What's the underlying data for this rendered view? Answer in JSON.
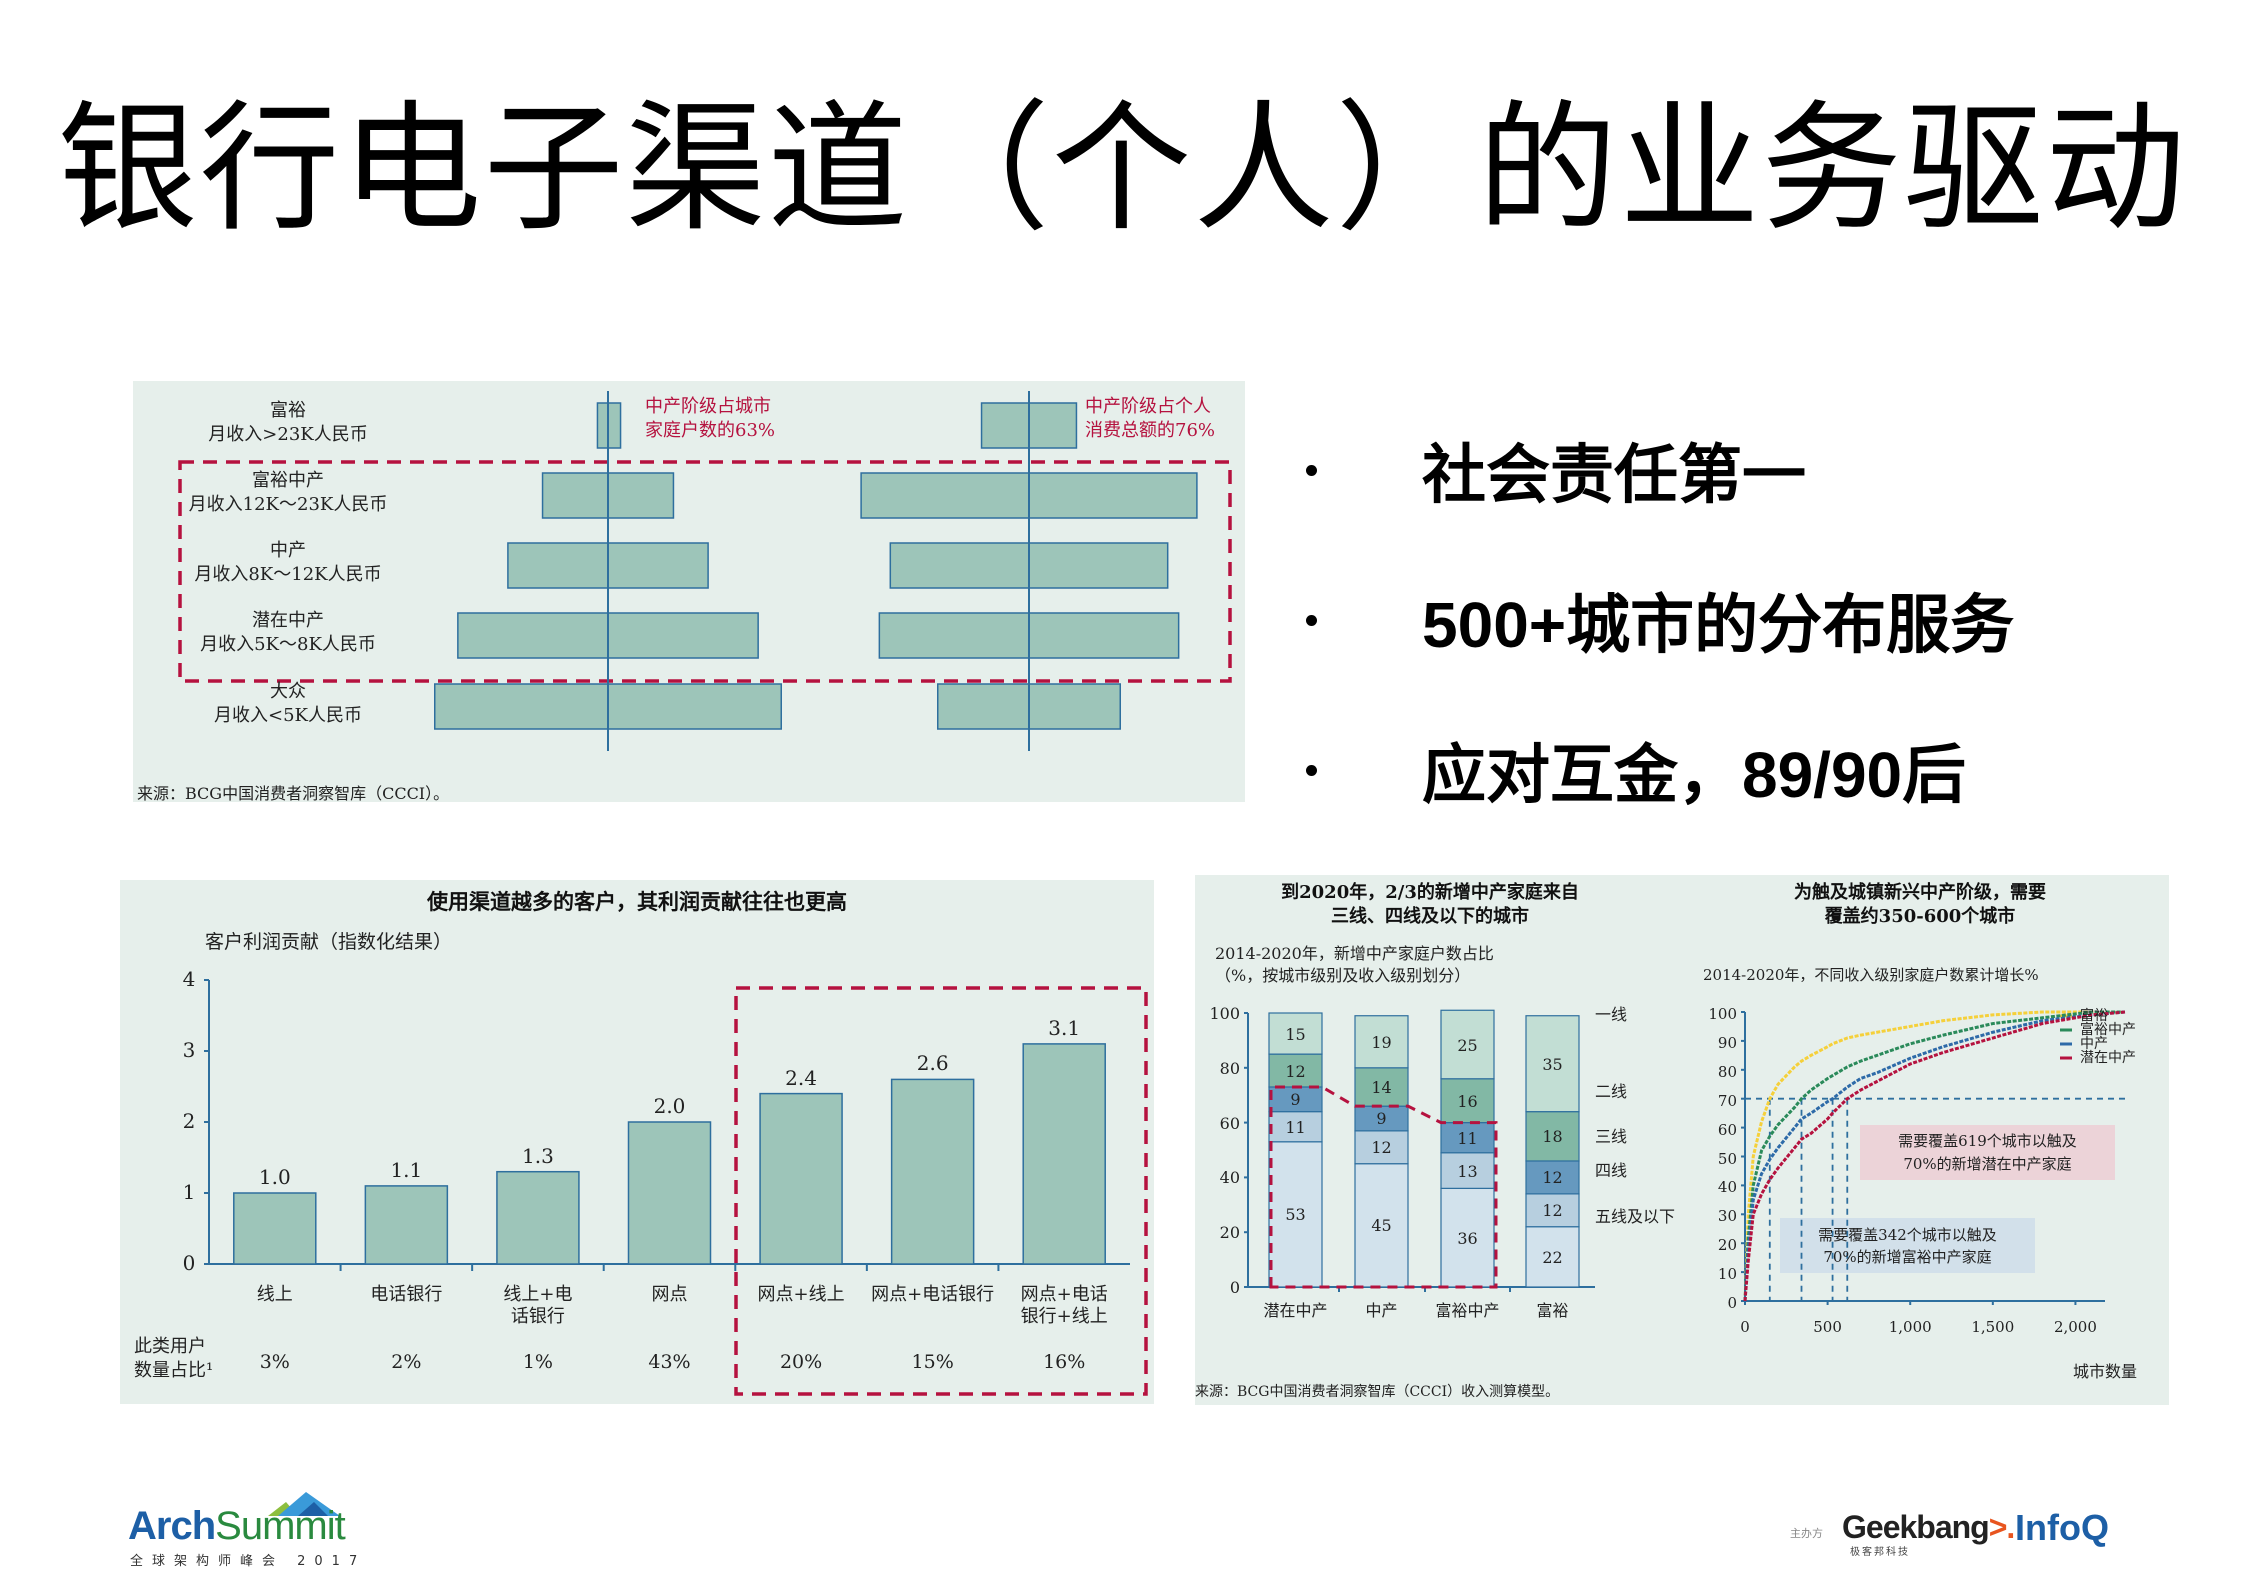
{
  "slide": {
    "title": "银行电子渠道（个人）的业务驱动"
  },
  "bullets": [
    "社会责任第一",
    "500+城市的分布服务",
    "应对互金，89/90后"
  ],
  "colors": {
    "panel_bg": "#e6efeb",
    "bar_fill": "#9dc5b9",
    "bar_stroke": "#2e6f9e",
    "highlight_red": "#b5123f",
    "tier1": "#c2ded4",
    "tier2": "#82b8a5",
    "tier3": "#6699bf",
    "tier4": "#b7cfdf",
    "tier5": "#d2e2ec",
    "line_rich": "#f5d03a",
    "line_rich_middle": "#2a8a5a",
    "line_middle": "#2d6aa8",
    "line_potential": "#b5123f"
  },
  "chart_data": [
    {
      "id": "pyramid",
      "type": "bar",
      "orientation": "horizontal-butterfly",
      "categories": [
        {
          "name": "富裕",
          "income": "月收入>23K人民币"
        },
        {
          "name": "富裕中产",
          "income": "月收入12K～23K人民币"
        },
        {
          "name": "中产",
          "income": "月收入8K～12K人民币"
        },
        {
          "name": "潜在中产",
          "income": "月收入5K～8K人民币"
        },
        {
          "name": "大众",
          "income": "月收入<5K人民币"
        }
      ],
      "series": [
        {
          "name": "城市家庭户数",
          "relative_widths": [
            3,
            17,
            26,
            39,
            45
          ]
        },
        {
          "name": "个人消费总额",
          "relative_widths": [
            13,
            46,
            38,
            41,
            25
          ]
        }
      ],
      "annotations": [
        {
          "line1": "中产阶级占城市",
          "line2": "家庭户数的63%"
        },
        {
          "line1": "中产阶级占个人",
          "line2": "消费总额的76%"
        }
      ],
      "highlight": "富裕中产 / 中产 / 潜在中产",
      "source": "来源：BCG中国消费者洞察智库（CCCI）。"
    },
    {
      "id": "profit",
      "type": "bar",
      "title": "使用渠道越多的客户，其利润贡献往往也更高",
      "ylabel": "客户利润贡献（指数化结果）",
      "ylim": [
        0,
        4
      ],
      "yticks": [
        "0",
        "1",
        "2",
        "3",
        "4"
      ],
      "categories": [
        "线上",
        "电话银行",
        "线上+电话银行",
        "网点",
        "网点+线上",
        "网点+电话银行",
        "网点+电话银行+线上"
      ],
      "category_lines": [
        [
          "线上"
        ],
        [
          "电话银行"
        ],
        [
          "线上+电",
          "话银行"
        ],
        [
          "网点"
        ],
        [
          "网点+线上"
        ],
        [
          "网点+电话银行"
        ],
        [
          "网点+电话",
          "银行+线上"
        ]
      ],
      "values": [
        1.0,
        1.1,
        1.3,
        2.0,
        2.4,
        2.6,
        3.1
      ],
      "value_labels": [
        "1.0",
        "1.1",
        "1.3",
        "2.0",
        "2.4",
        "2.6",
        "3.1"
      ],
      "share_label_line1": "此类用户",
      "share_label_line2": "数量占比¹",
      "shares": [
        "3%",
        "2%",
        "1%",
        "43%",
        "20%",
        "15%",
        "16%"
      ],
      "highlight_categories": [
        "网点+线上",
        "网点+电话银行",
        "网点+电话银行+线上"
      ]
    },
    {
      "id": "stacked",
      "type": "bar",
      "stacked": true,
      "title_line1": "到2020年，2/3的新增中产家庭来自",
      "title_line2": "三线、四线及以下的城市",
      "subtitle_line1": "2014-2020年，新增中产家庭户数占比",
      "subtitle_line2": "（%，按城市级别及收入级别划分）",
      "ylim": [
        0,
        100
      ],
      "yticks": [
        "0",
        "20",
        "40",
        "60",
        "80",
        "100"
      ],
      "categories": [
        "潜在中产",
        "中产",
        "富裕中产",
        "富裕"
      ],
      "series": [
        {
          "name": "五线及以下",
          "values": [
            53,
            45,
            36,
            22
          ]
        },
        {
          "name": "四线",
          "values": [
            11,
            12,
            13,
            12
          ]
        },
        {
          "name": "三线",
          "values": [
            9,
            9,
            11,
            12
          ]
        },
        {
          "name": "二线",
          "values": [
            12,
            14,
            16,
            18
          ]
        },
        {
          "name": "一线",
          "values": [
            15,
            19,
            25,
            35
          ]
        }
      ],
      "legend": [
        "一线",
        "二线",
        "三线",
        "四线",
        "五线及以下"
      ],
      "source": "来源：BCG中国消费者洞察智库（CCCI）收入测算模型。"
    },
    {
      "id": "coverage",
      "type": "line",
      "title_line1": "为触及城镇新兴中产阶级，需要",
      "title_line2": "覆盖约350-600个城市",
      "subtitle": "2014-2020年，不同收入级别家庭户数累计增长%",
      "xlabel": "城市数量",
      "xlim": [
        0,
        2300
      ],
      "ylim": [
        0,
        100
      ],
      "xticks": [
        "0",
        "500",
        "1,000",
        "1,500",
        "2,000"
      ],
      "yticks": [
        "0",
        "10",
        "20",
        "30",
        "40",
        "50",
        "60",
        "70",
        "80",
        "90",
        "100"
      ],
      "x": [
        0,
        20,
        50,
        100,
        150,
        200,
        300,
        342,
        400,
        500,
        530,
        619,
        700,
        800,
        1000,
        1200,
        1500,
        1800,
        2100,
        2300
      ],
      "series": [
        {
          "name": "富裕",
          "values": [
            0,
            30,
            50,
            62,
            70,
            75,
            81,
            83,
            85,
            88,
            89,
            91,
            92,
            93,
            95,
            97,
            99,
            100,
            100,
            100
          ]
        },
        {
          "name": "富裕中产",
          "values": [
            0,
            22,
            40,
            52,
            57,
            61,
            67,
            70,
            73,
            77,
            78,
            81,
            83,
            85,
            89,
            92,
            96,
            98,
            100,
            100
          ]
        },
        {
          "name": "中产",
          "values": [
            0,
            18,
            35,
            44,
            49,
            53,
            60,
            63,
            65,
            69,
            70,
            74,
            77,
            79,
            84,
            88,
            93,
            97,
            99,
            100
          ]
        },
        {
          "name": "潜在中产",
          "values": [
            0,
            14,
            30,
            37,
            42,
            46,
            53,
            56,
            58,
            63,
            65,
            70,
            73,
            76,
            82,
            86,
            91,
            96,
            99,
            100
          ]
        }
      ],
      "reference_line_y": 70,
      "reference_x": [
        150,
        342,
        530,
        619
      ],
      "annotations": [
        {
          "line1": "需要覆盖619个城市以触及",
          "line2": "70%的新增潜在中产家庭",
          "bg": "#ecd3d8"
        },
        {
          "line1": "需要覆盖342个城市以触及",
          "line2": "70%的新增富裕中产家庭",
          "bg": "#d2e0ea"
        }
      ]
    }
  ],
  "footer": {
    "logo_arch": "Arch",
    "logo_summit": "Summit",
    "logo_sub": "全球架构师峰会 2017",
    "host_label": "主办方",
    "geekbang": "Geekbang",
    "geekbang_cn": "极客邦科技",
    "infoq": "InfoQ"
  }
}
